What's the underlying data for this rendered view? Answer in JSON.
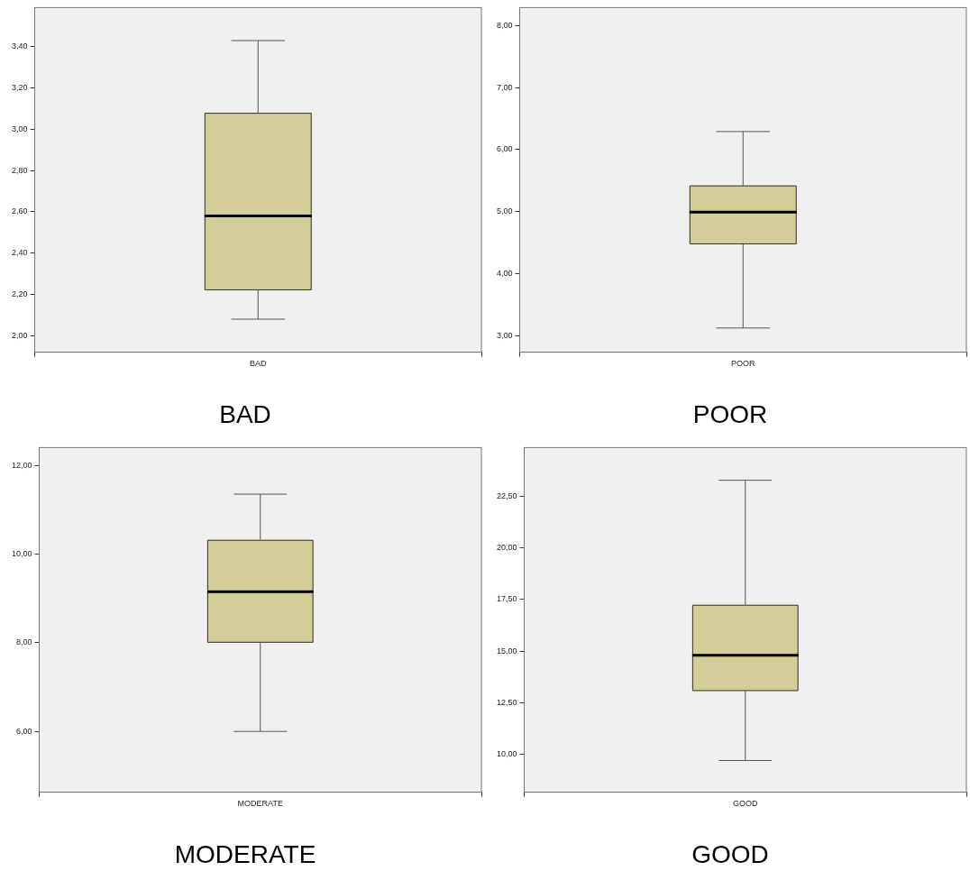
{
  "chart_data": [
    {
      "type": "box",
      "title": "BAD",
      "categories": [
        "BAD"
      ],
      "color": "#d3ce98",
      "boxes": [
        {
          "low": 2.08,
          "q1": 2.22,
          "median": 2.58,
          "q3": 3.08,
          "high": 3.43
        }
      ],
      "ylim": [
        1.92,
        3.59
      ],
      "yticks": [
        {
          "value": 2.0,
          "label": "2,00"
        },
        {
          "value": 2.2,
          "label": "2,20"
        },
        {
          "value": 2.4,
          "label": "2,40"
        },
        {
          "value": 2.6,
          "label": "2,60"
        },
        {
          "value": 2.8,
          "label": "2,80"
        },
        {
          "value": 3.0,
          "label": "3,00"
        },
        {
          "value": 3.2,
          "label": "3,20"
        },
        {
          "value": 3.4,
          "label": "3,40"
        }
      ]
    },
    {
      "type": "box",
      "title": "POOR",
      "categories": [
        "POOR"
      ],
      "color": "#d3ce98",
      "boxes": [
        {
          "low": 3.12,
          "q1": 4.47,
          "median": 4.99,
          "q3": 5.42,
          "high": 6.29
        }
      ],
      "ylim": [
        2.73,
        8.29
      ],
      "yticks": [
        {
          "value": 3,
          "label": "3,00"
        },
        {
          "value": 4,
          "label": "4,00"
        },
        {
          "value": 5,
          "label": "5,00"
        },
        {
          "value": 6,
          "label": "6,00"
        },
        {
          "value": 7,
          "label": "7,00"
        },
        {
          "value": 8,
          "label": "8,00"
        }
      ]
    },
    {
      "type": "box",
      "title": "MODERATE",
      "categories": [
        "MODERATE"
      ],
      "color": "#d3ce98",
      "boxes": [
        {
          "low": 6.0,
          "q1": 8.0,
          "median": 9.15,
          "q3": 10.32,
          "high": 11.35
        }
      ],
      "ylim": [
        4.63,
        12.4
      ],
      "yticks": [
        {
          "value": 6,
          "label": "6,00"
        },
        {
          "value": 8,
          "label": "8,00"
        },
        {
          "value": 10,
          "label": "10,00"
        },
        {
          "value": 12,
          "label": "12,00"
        }
      ]
    },
    {
      "type": "box",
      "title": "GOOD",
      "categories": [
        "GOOD"
      ],
      "color": "#d3ce98",
      "boxes": [
        {
          "low": 9.71,
          "q1": 13.07,
          "median": 14.8,
          "q3": 17.24,
          "high": 23.26
        }
      ],
      "ylim": [
        8.18,
        24.84
      ],
      "yticks": [
        {
          "value": 10,
          "label": "10,00"
        },
        {
          "value": 12.5,
          "label": "12,50"
        },
        {
          "value": 15,
          "label": "15,00"
        },
        {
          "value": 17.5,
          "label": "17,50"
        },
        {
          "value": 20,
          "label": "20,00"
        },
        {
          "value": 22.5,
          "label": "22,50"
        }
      ]
    }
  ]
}
